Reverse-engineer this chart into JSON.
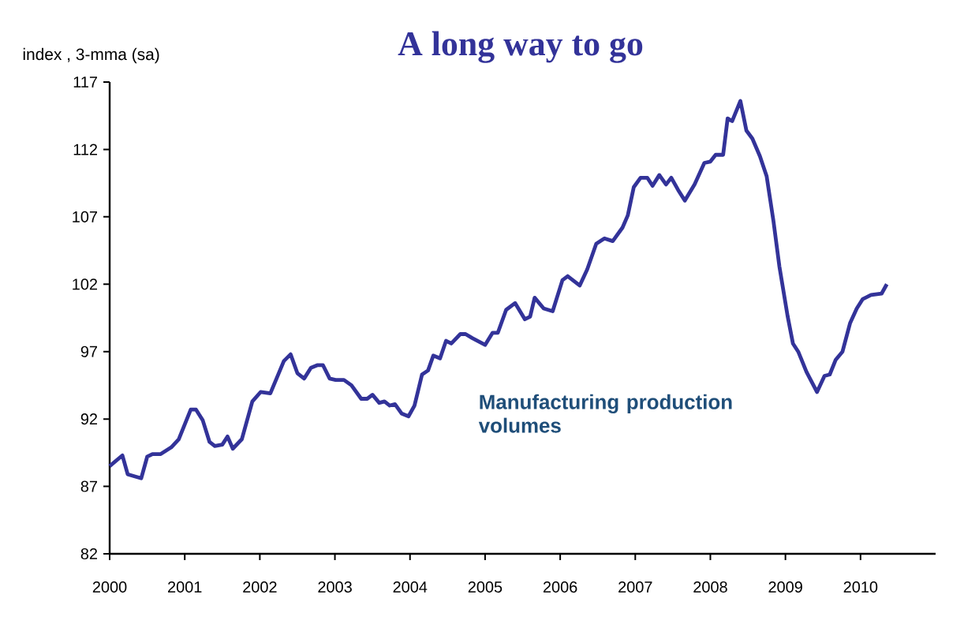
{
  "chart_data": {
    "type": "line",
    "title": "A long way to go",
    "ylabel": "index , 3-mma (sa)",
    "annotations": [
      "Manufacturing production volumes"
    ],
    "x": [
      2000.0,
      2000.17,
      2000.24,
      2000.42,
      2000.5,
      2000.57,
      2000.68,
      2000.82,
      2000.92,
      2001.08,
      2001.15,
      2001.24,
      2001.33,
      2001.4,
      2001.5,
      2001.57,
      2001.64,
      2001.76,
      2001.9,
      2002.01,
      2002.14,
      2002.32,
      2002.41,
      2002.5,
      2002.59,
      2002.68,
      2002.77,
      2002.84,
      2002.93,
      2003.01,
      2003.12,
      2003.22,
      2003.35,
      2003.43,
      2003.5,
      2003.59,
      2003.66,
      2003.73,
      2003.8,
      2003.89,
      2003.98,
      2004.06,
      2004.16,
      2004.24,
      2004.31,
      2004.4,
      2004.48,
      2004.55,
      2004.67,
      2004.74,
      2004.83,
      2005.0,
      2005.1,
      2005.17,
      2005.28,
      2005.4,
      2005.53,
      2005.6,
      2005.66,
      2005.78,
      2005.9,
      2006.03,
      2006.1,
      2006.26,
      2006.36,
      2006.48,
      2006.59,
      2006.7,
      2006.83,
      2006.9,
      2006.98,
      2007.07,
      2007.16,
      2007.23,
      2007.32,
      2007.41,
      2007.48,
      2007.57,
      2007.66,
      2007.79,
      2007.92,
      2008.0,
      2008.07,
      2008.17,
      2008.23,
      2008.29,
      2008.4,
      2008.48,
      2008.56,
      2008.66,
      2008.75,
      2008.84,
      2008.92,
      2009.03,
      2009.1,
      2009.17,
      2009.28,
      2009.42,
      2009.52,
      2009.59,
      2009.67,
      2009.76,
      2009.86,
      2009.95,
      2010.03,
      2010.14,
      2010.28,
      2010.35
    ],
    "series": [
      {
        "color": "#333399",
        "values": [
          88.5,
          89.3,
          87.9,
          87.6,
          89.2,
          89.4,
          89.4,
          89.9,
          90.5,
          92.7,
          92.7,
          91.9,
          90.3,
          90.0,
          90.1,
          90.7,
          89.8,
          90.5,
          93.3,
          94.0,
          93.9,
          96.3,
          96.8,
          95.4,
          95.0,
          95.8,
          96.0,
          96.0,
          95.0,
          94.9,
          94.9,
          94.5,
          93.5,
          93.5,
          93.8,
          93.2,
          93.3,
          93.0,
          93.1,
          92.4,
          92.2,
          93.0,
          95.3,
          95.6,
          96.7,
          96.5,
          97.8,
          97.6,
          98.3,
          98.3,
          98.0,
          97.5,
          98.4,
          98.4,
          100.1,
          100.6,
          99.4,
          99.6,
          101.0,
          100.2,
          100.0,
          102.3,
          102.6,
          101.9,
          103.1,
          105.0,
          105.4,
          105.2,
          106.2,
          107.1,
          109.2,
          109.9,
          109.9,
          109.3,
          110.1,
          109.4,
          109.9,
          109.0,
          108.2,
          109.4,
          111.0,
          111.1,
          111.6,
          111.6,
          114.3,
          114.1,
          115.6,
          113.4,
          112.8,
          111.5,
          110.0,
          106.7,
          103.3,
          99.6,
          97.6,
          97.0,
          95.5,
          94.0,
          95.2,
          95.3,
          96.4,
          97.0,
          99.1,
          100.2,
          100.9,
          101.2,
          101.3,
          102.0
        ]
      }
    ],
    "xlim": [
      2000,
      2011
    ],
    "ylim": [
      82,
      117
    ],
    "xticks": [
      2000,
      2001,
      2002,
      2003,
      2004,
      2005,
      2006,
      2007,
      2008,
      2009,
      2010
    ],
    "yticks": [
      82,
      87,
      92,
      97,
      102,
      107,
      112,
      117
    ]
  }
}
